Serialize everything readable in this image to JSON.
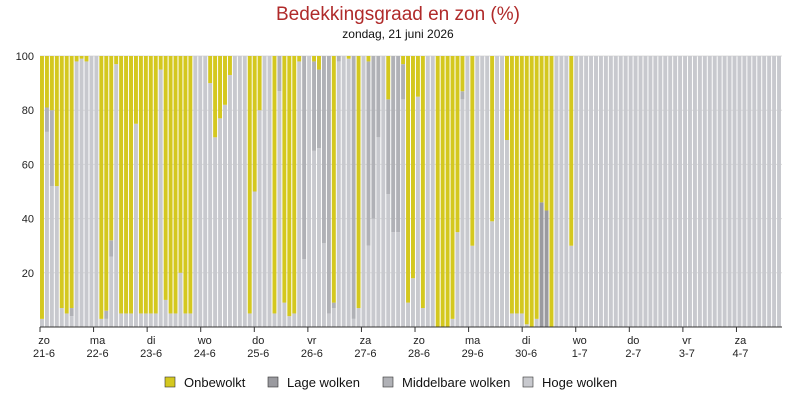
{
  "chart_data": {
    "type": "bar",
    "stacked": true,
    "title": "Bedekkingsgraad en zon (%)",
    "subtitle": "zondag, 21 juni 2026",
    "ylim": [
      0,
      100
    ],
    "y_ticks": [
      "20",
      "40",
      "60",
      "80",
      "100"
    ],
    "grid": true,
    "legend_position": "bottom",
    "colors": {
      "title": "#b02a2a",
      "onbewolkt": "#d4c81f",
      "lage": "#9a9a9f",
      "middelbare": "#b0b1b6",
      "hoge": "#c8c9ce",
      "grid": "#dddddd"
    },
    "x_labels": [
      {
        "day": "zo",
        "date": "21-6"
      },
      {
        "day": "ma",
        "date": "22-6"
      },
      {
        "day": "di",
        "date": "23-6"
      },
      {
        "day": "wo",
        "date": "24-6"
      },
      {
        "day": "do",
        "date": "25-6"
      },
      {
        "day": "vr",
        "date": "26-6"
      },
      {
        "day": "za",
        "date": "27-6"
      },
      {
        "day": "zo",
        "date": "28-6"
      },
      {
        "day": "ma",
        "date": "29-6"
      },
      {
        "day": "di",
        "date": "30-6"
      },
      {
        "day": "wo",
        "date": "1-7"
      },
      {
        "day": "do",
        "date": "2-7"
      },
      {
        "day": "vr",
        "date": "3-7"
      },
      {
        "day": "za",
        "date": "4-7"
      }
    ],
    "series_order": [
      "hoge",
      "middelbare",
      "lage",
      "onbewolkt"
    ],
    "series": [
      {
        "name": "Onbewolkt",
        "key": "onbewolkt",
        "values": [
          97,
          19,
          20,
          48,
          93,
          95,
          93,
          2,
          1,
          2,
          0,
          0,
          0,
          0,
          0,
          0,
          0,
          97,
          94,
          68,
          3,
          91,
          0,
          95,
          95,
          95,
          25,
          95,
          80,
          95,
          95,
          95,
          95,
          5,
          90,
          95,
          95,
          0,
          0,
          0,
          10,
          30,
          23,
          18,
          0,
          0,
          0,
          0,
          0,
          0,
          0,
          0,
          0,
          0,
          0,
          0,
          0,
          0,
          0,
          0,
          0,
          0,
          0,
          0,
          0,
          0,
          0,
          0,
          0,
          0,
          0,
          0,
          10,
          85,
          48,
          40,
          0,
          0,
          0,
          0,
          0,
          0,
          0,
          0,
          0,
          0,
          0,
          0,
          0,
          0,
          0,
          0,
          0,
          0,
          0,
          0,
          0,
          0,
          0,
          0,
          0,
          0,
          0,
          0,
          0,
          0,
          0,
          0,
          0,
          0,
          0,
          0,
          0,
          0,
          0,
          0,
          0,
          0,
          0,
          0,
          0,
          0,
          0,
          0,
          0,
          0,
          0,
          0,
          0,
          0,
          0,
          0,
          0,
          0,
          0,
          0,
          0,
          0,
          0,
          0,
          0,
          0,
          0,
          0,
          0,
          0,
          0,
          0,
          0
        ]
      },
      {
        "name": "Lage wolken",
        "key": "lage",
        "values": [
          0,
          0,
          0,
          0,
          0,
          0,
          0,
          0,
          0,
          0,
          0,
          0,
          0,
          0,
          0,
          0,
          0,
          0,
          0,
          0,
          0,
          0,
          0,
          0,
          0,
          0,
          0,
          0,
          0,
          0,
          0,
          0,
          0,
          0,
          0,
          0,
          0,
          0,
          0,
          0,
          0,
          0,
          0,
          0,
          0,
          0,
          0,
          0,
          0,
          0,
          0,
          0,
          0,
          0,
          0,
          0,
          0,
          0,
          0,
          0,
          0,
          0,
          0,
          0,
          0,
          0,
          0,
          0,
          0,
          0,
          0,
          0,
          0,
          0,
          0,
          0,
          0,
          0,
          0,
          0,
          0,
          0,
          0,
          0,
          0,
          0,
          0,
          0,
          0,
          0,
          0,
          0,
          0,
          0,
          0,
          0,
          0,
          0,
          0,
          0,
          0,
          0,
          0,
          0,
          0,
          0,
          0,
          0,
          0,
          0,
          0,
          0,
          0,
          0,
          0,
          0,
          0,
          0,
          0,
          0,
          0,
          0,
          0,
          0,
          0,
          0,
          0,
          0,
          0,
          0,
          0,
          0,
          0,
          0,
          0,
          0,
          0,
          0,
          0,
          0,
          0,
          0,
          0,
          0,
          0,
          0,
          0,
          0,
          0,
          0,
          0,
          0,
          0
        ]
      },
      {
        "name": "Middelbare wolken",
        "key": "middelbare",
        "values": [
          0,
          9,
          28,
          0,
          0,
          0,
          3,
          0,
          0,
          0,
          0,
          0,
          0,
          0,
          0,
          0,
          0,
          0,
          3,
          6,
          0,
          0,
          0,
          0,
          0,
          0,
          0,
          0,
          0,
          0,
          0,
          0,
          0,
          0,
          0,
          0,
          0,
          0,
          0,
          0,
          0,
          0,
          0,
          0,
          0,
          0,
          0,
          0,
          0,
          0,
          0,
          0,
          0,
          0,
          0,
          0,
          0,
          0,
          0,
          0,
          0,
          0,
          0,
          0,
          0,
          0,
          0,
          0,
          0,
          0,
          0,
          0,
          0,
          0,
          0,
          0,
          0,
          0,
          0,
          0,
          0,
          0,
          0,
          0,
          0,
          0,
          0,
          0,
          0,
          0,
          0,
          0,
          0,
          0,
          0,
          0,
          0,
          0,
          0,
          0,
          0,
          0,
          0,
          0,
          0,
          0,
          0,
          0,
          0,
          0,
          0,
          0,
          0,
          0,
          0,
          0,
          0,
          0,
          0,
          0,
          0,
          0,
          0,
          0,
          0,
          0,
          0,
          0,
          0,
          0,
          0,
          0,
          0,
          0,
          0,
          0,
          0,
          0,
          0,
          0,
          0,
          0,
          0,
          0,
          0,
          0,
          0,
          0,
          0,
          0,
          0,
          0,
          0
        ]
      },
      {
        "name": "Hoge wolken",
        "key": "hoge",
        "values": [
          3,
          72,
          52,
          52,
          7,
          5,
          4,
          98,
          99,
          98,
          100,
          100,
          100,
          100,
          100,
          100,
          100,
          3,
          3,
          26,
          97,
          9,
          100,
          5,
          5,
          5,
          75,
          5,
          20,
          5,
          5,
          5,
          5,
          95,
          10,
          5,
          5,
          100,
          100,
          100,
          90,
          70,
          77,
          82,
          100,
          100,
          100,
          100,
          100,
          100,
          100,
          100,
          100,
          100,
          100,
          100,
          100,
          100,
          100,
          100,
          100,
          100,
          100,
          100,
          100,
          100,
          100,
          100,
          100,
          100,
          100,
          100,
          90,
          15,
          52,
          60,
          100,
          100,
          100,
          100,
          100,
          100,
          100,
          100,
          100,
          100,
          100,
          100,
          100,
          100,
          100,
          100,
          100,
          100,
          100,
          100,
          100,
          100,
          100,
          100,
          100,
          100,
          100,
          100,
          100,
          100,
          100,
          100,
          100,
          100,
          100,
          100,
          100,
          100,
          100,
          100,
          100,
          100,
          100,
          100,
          100,
          100,
          100,
          100,
          100,
          100,
          100,
          100,
          100,
          100,
          100,
          100,
          100,
          100,
          100,
          100,
          100,
          100,
          100,
          100,
          100,
          100,
          100,
          100,
          100,
          100,
          100,
          100,
          100,
          100,
          100,
          100
        ]
      }
    ],
    "bars": [
      [
        97,
        0,
        0,
        3
      ],
      [
        19,
        0,
        9,
        72
      ],
      [
        20,
        0,
        28,
        52
      ],
      [
        48,
        0,
        0,
        52
      ],
      [
        93,
        0,
        0,
        7
      ],
      [
        95,
        0,
        0,
        5
      ],
      [
        93,
        0,
        3,
        4
      ],
      [
        2,
        0,
        0,
        98
      ],
      [
        1,
        0,
        0,
        99
      ],
      [
        2,
        0,
        0,
        98
      ],
      [
        0,
        0,
        0,
        100
      ],
      [
        0,
        0,
        0,
        100
      ],
      [
        97,
        0,
        0,
        3
      ],
      [
        94,
        0,
        3,
        3
      ],
      [
        68,
        0,
        6,
        26
      ],
      [
        3,
        0,
        0,
        97
      ],
      [
        95,
        0,
        0,
        5
      ],
      [
        95,
        0,
        0,
        5
      ],
      [
        95,
        0,
        0,
        5
      ],
      [
        25,
        0,
        0,
        75
      ],
      [
        95,
        0,
        0,
        5
      ],
      [
        95,
        0,
        0,
        5
      ],
      [
        95,
        0,
        0,
        5
      ],
      [
        95,
        0,
        0,
        5
      ],
      [
        5,
        0,
        0,
        95
      ],
      [
        90,
        0,
        0,
        10
      ],
      [
        95,
        0,
        0,
        5
      ],
      [
        95,
        0,
        0,
        5
      ],
      [
        80,
        0,
        0,
        20
      ],
      [
        95,
        0,
        0,
        5
      ],
      [
        95,
        0,
        0,
        5
      ],
      [
        0,
        0,
        0,
        100
      ],
      [
        0,
        0,
        0,
        100
      ],
      [
        0,
        0,
        0,
        100
      ],
      [
        10,
        0,
        0,
        90
      ],
      [
        30,
        0,
        0,
        70
      ],
      [
        23,
        0,
        0,
        77
      ],
      [
        18,
        0,
        0,
        82
      ],
      [
        7,
        0,
        0,
        93
      ],
      [
        0,
        0,
        0,
        100
      ],
      [
        0,
        0,
        0,
        100
      ],
      [
        0,
        0,
        0,
        100
      ],
      [
        95,
        0,
        0,
        5
      ],
      [
        50,
        0,
        0,
        50
      ],
      [
        20,
        0,
        0,
        80
      ],
      [
        0,
        0,
        0,
        100
      ],
      [
        0,
        0,
        0,
        100
      ],
      [
        95,
        0,
        0,
        5
      ],
      [
        0,
        0,
        13,
        87
      ],
      [
        91,
        0,
        0,
        9
      ],
      [
        96,
        0,
        0,
        4
      ],
      [
        95,
        0,
        0,
        5
      ],
      [
        2,
        0,
        0,
        98
      ],
      [
        0,
        0,
        75,
        25
      ],
      [
        0,
        0,
        0,
        100
      ],
      [
        2,
        0,
        33,
        65
      ],
      [
        5,
        0,
        29,
        66
      ],
      [
        0,
        0,
        69,
        31
      ],
      [
        0,
        0,
        95,
        5
      ],
      [
        91,
        0,
        2,
        7
      ],
      [
        0,
        0,
        2,
        98
      ],
      [
        0,
        0,
        0,
        100
      ],
      [
        1,
        0,
        0,
        99
      ],
      [
        0,
        0,
        97,
        3
      ],
      [
        93,
        0,
        0,
        7
      ],
      [
        0,
        0,
        0,
        100
      ],
      [
        2,
        0,
        68,
        30
      ],
      [
        0,
        0,
        60,
        40
      ],
      [
        0,
        0,
        30,
        70
      ],
      [
        0,
        0,
        0,
        100
      ],
      [
        16,
        0,
        35,
        49
      ],
      [
        0,
        0,
        65,
        35
      ],
      [
        0,
        0,
        65,
        35
      ],
      [
        3,
        0,
        13,
        84
      ],
      [
        91,
        0,
        0,
        9
      ],
      [
        82,
        0,
        0,
        18
      ],
      [
        15,
        0,
        0,
        85
      ],
      [
        93,
        0,
        0,
        7
      ],
      [
        0,
        0,
        0,
        100
      ],
      [
        0,
        0,
        0,
        100
      ],
      [
        100,
        0,
        0,
        0
      ],
      [
        100,
        0,
        0,
        0
      ],
      [
        100,
        0,
        0,
        0
      ],
      [
        97,
        0,
        0,
        3
      ],
      [
        65,
        0,
        0,
        35
      ],
      [
        13,
        0,
        3,
        84
      ],
      [
        0,
        0,
        0,
        100
      ],
      [
        70,
        0,
        0,
        30
      ],
      [
        0,
        0,
        0,
        100
      ],
      [
        0,
        0,
        0,
        100
      ],
      [
        0,
        0,
        0,
        100
      ],
      [
        61,
        0,
        0,
        39
      ],
      [
        0,
        0,
        0,
        100
      ],
      [
        0,
        0,
        0,
        100
      ],
      [
        31,
        0,
        0,
        69
      ],
      [
        95,
        0,
        0,
        5
      ],
      [
        95,
        0,
        0,
        5
      ],
      [
        95,
        0,
        0,
        5
      ],
      [
        99,
        0,
        0,
        1
      ],
      [
        100,
        0,
        0,
        0
      ],
      [
        97,
        0,
        0,
        3
      ],
      [
        54,
        46,
        0,
        0
      ],
      [
        57,
        43,
        0,
        0
      ],
      [
        100,
        0,
        0,
        0
      ],
      [
        0,
        0,
        0,
        100
      ],
      [
        0,
        0,
        0,
        100
      ],
      [
        0,
        0,
        0,
        100
      ],
      [
        70,
        0,
        0,
        30
      ],
      [
        0,
        0,
        0,
        100
      ],
      [
        0,
        0,
        0,
        100
      ],
      [
        0,
        0,
        0,
        100
      ],
      [
        0,
        0,
        0,
        100
      ],
      [
        0,
        0,
        0,
        100
      ],
      [
        0,
        0,
        0,
        100
      ],
      [
        0,
        0,
        0,
        100
      ],
      [
        0,
        0,
        0,
        100
      ],
      [
        0,
        0,
        0,
        100
      ],
      [
        0,
        0,
        0,
        100
      ],
      [
        0,
        0,
        0,
        100
      ],
      [
        0,
        0,
        0,
        100
      ],
      [
        0,
        0,
        0,
        100
      ],
      [
        0,
        0,
        0,
        100
      ],
      [
        0,
        0,
        0,
        100
      ],
      [
        0,
        0,
        0,
        100
      ],
      [
        0,
        0,
        0,
        100
      ],
      [
        0,
        0,
        0,
        100
      ],
      [
        0,
        0,
        0,
        100
      ],
      [
        0,
        0,
        0,
        100
      ],
      [
        0,
        0,
        0,
        100
      ],
      [
        0,
        0,
        0,
        100
      ],
      [
        0,
        0,
        0,
        100
      ],
      [
        0,
        0,
        0,
        100
      ],
      [
        0,
        0,
        0,
        100
      ],
      [
        0,
        0,
        0,
        100
      ],
      [
        0,
        0,
        0,
        100
      ],
      [
        0,
        0,
        0,
        100
      ],
      [
        0,
        0,
        0,
        100
      ],
      [
        0,
        0,
        0,
        100
      ],
      [
        0,
        0,
        0,
        100
      ],
      [
        0,
        0,
        0,
        100
      ],
      [
        0,
        0,
        0,
        100
      ],
      [
        0,
        0,
        0,
        100
      ],
      [
        0,
        0,
        0,
        100
      ],
      [
        0,
        0,
        0,
        100
      ],
      [
        0,
        0,
        0,
        100
      ],
      [
        0,
        0,
        0,
        100
      ],
      [
        0,
        0,
        0,
        100
      ],
      [
        0,
        0,
        0,
        100
      ],
      [
        0,
        0,
        0,
        100
      ],
      [
        0,
        0,
        0,
        100
      ]
    ]
  },
  "legend": [
    {
      "key": "onbewolkt",
      "label": "Onbewolkt"
    },
    {
      "key": "lage",
      "label": "Lage wolken"
    },
    {
      "key": "middelbare",
      "label": "Middelbare wolken"
    },
    {
      "key": "hoge",
      "label": "Hoge wolken"
    }
  ]
}
